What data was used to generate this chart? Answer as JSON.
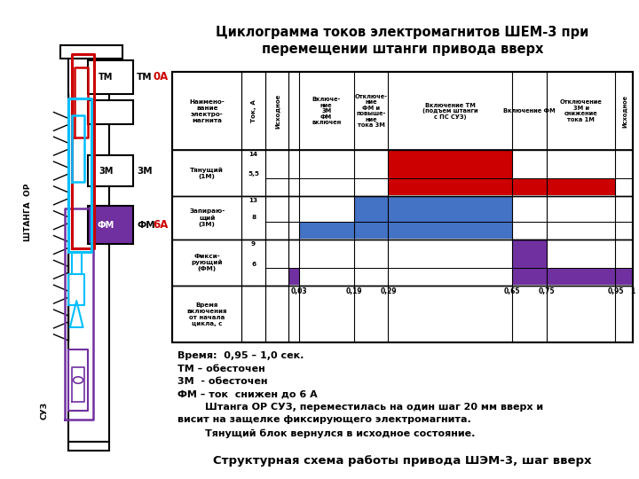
{
  "title": "Циклограмма токов электромагнитов ШЕМ-3 при\nперемещении штанги привода вверх",
  "bottom_title": "Структурная схема работы привода ШЭМ-3, шаг вверх",
  "phase_headers": [
    "Наимено-\nвание\nэлектро-\nмагнита",
    "Ток, А",
    "Исходное",
    "Включе-\nние\n3М\nФМ\nвключен",
    "Отключе-\nние\nФМ и\nповыше-\nние\nтока 3М",
    "Включение ТМ\n(подъем штанги\nс ПС СУЗ)",
    "Включение ФМ",
    "Отключение\n3М и\nснижение\nтока 1М",
    "Исходное"
  ],
  "time_points": [
    0.0,
    0.03,
    0.19,
    0.29,
    0.65,
    0.75,
    0.95,
    1.0
  ],
  "time_labels": [
    "0,03",
    "0,19",
    "0,29",
    "0,65",
    "0,75",
    "0,95",
    "1"
  ],
  "row_names": [
    "Тянущий\n(1М)",
    "Запираю-\nщий\n(3М)",
    "Фикси-\nрующий\n(ФМ)"
  ],
  "row_hi": [
    "14",
    "13",
    "9"
  ],
  "row_lo": [
    "5,5",
    "8",
    "6"
  ],
  "bar_color_red": "#CC0000",
  "bar_color_blue": "#4472C4",
  "bar_color_purple": "#7030A0",
  "annotation_text": "Время:  0,95 – 1,0 сек.\nТМ – обесточен\n3М  - обесточен\nФМ – ток  снижен до 6 А\n        Штанга ОР СУЗ, переместилась на один шаг 20 мм вверх и\nвисит на защелке фиксирующего электромагнита.\n        Тянущий блок вернулся в исходное состояние.",
  "background": "#FFFFFF"
}
